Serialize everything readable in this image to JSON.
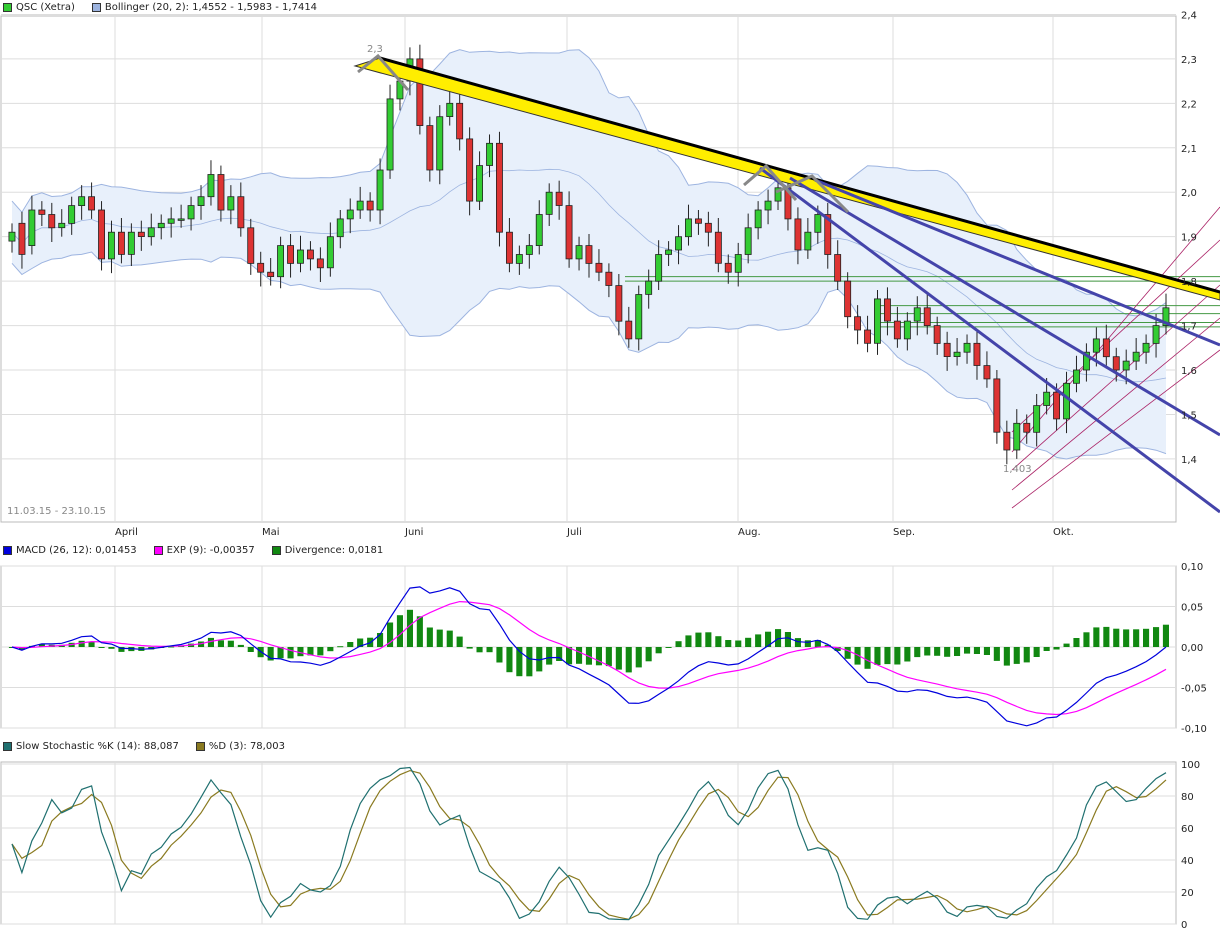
{
  "colors": {
    "up": "#33cc33",
    "down": "#dd3333",
    "band_fill": "#e8f0fb",
    "band_line": "#9db4e0",
    "macd": "#0000dd",
    "exp": "#ff00ff",
    "divergence": "#118811",
    "stoch_k": "#207070",
    "stoch_d": "#8a7a20",
    "trend_main": "#000000",
    "trend_yellow": "#ffee00",
    "trend_blue": "#4444aa",
    "channel": "#aa2266",
    "hline": "#449944",
    "grid": "#dddddd"
  },
  "legends": {
    "price": [
      {
        "label": "QSC (Xetra)",
        "color": "#33cc33"
      },
      {
        "label": "Bollinger (20, 2): 1,4552 - 1,5983 - 1,7414",
        "color": "#9db4e0"
      }
    ],
    "macd": [
      {
        "label": "MACD (26, 12): 0,01453",
        "color": "#0000dd"
      },
      {
        "label": "EXP (9): -0,00357",
        "color": "#ff00ff"
      },
      {
        "label": "Divergence: 0,0181",
        "color": "#118811"
      }
    ],
    "stoch": [
      {
        "label": "Slow Stochastic %K (14): 88,087",
        "color": "#207070"
      },
      {
        "label": "%D (3): 78,003",
        "color": "#8a7a20"
      }
    ]
  },
  "date_range": "11.03.15 - 23.10.15",
  "months": [
    "April",
    "Mai",
    "Juni",
    "Juli",
    "Aug.",
    "Sep.",
    "Okt."
  ],
  "price_ticks": [
    "2,4",
    "2,3",
    "2,2",
    "2,1",
    "2,0",
    "1,9",
    "1,8",
    "1,7",
    "1,6",
    "1,5",
    "1,4"
  ],
  "macd_ticks": [
    "0,10",
    "0,05",
    "0,00",
    "-0,05",
    "-0,10"
  ],
  "stoch_ticks": [
    "100",
    "80",
    "60",
    "40",
    "20",
    "0"
  ],
  "annotations": {
    "high": "2,3",
    "low": "1,403"
  },
  "chart_data": [
    {
      "type": "candlestick",
      "title": "QSC (Xetra)",
      "x_range": [
        "11.03.15",
        "23.10.15"
      ],
      "ylim": [
        1.3,
        2.4
      ],
      "closes": [
        1.91,
        1.86,
        1.96,
        1.95,
        1.92,
        1.93,
        1.97,
        1.99,
        1.96,
        1.85,
        1.91,
        1.86,
        1.91,
        1.9,
        1.92,
        1.93,
        1.94,
        1.94,
        1.97,
        1.99,
        2.04,
        1.96,
        1.99,
        1.92,
        1.84,
        1.82,
        1.81,
        1.88,
        1.84,
        1.87,
        1.85,
        1.83,
        1.9,
        1.94,
        1.96,
        1.98,
        1.96,
        2.05,
        2.21,
        2.25,
        2.3,
        2.15,
        2.05,
        2.17,
        2.2,
        2.12,
        1.98,
        2.06,
        2.11,
        1.91,
        1.84,
        1.86,
        1.88,
        1.95,
        2.0,
        1.97,
        1.85,
        1.88,
        1.84,
        1.82,
        1.79,
        1.71,
        1.67,
        1.77,
        1.8,
        1.86,
        1.87,
        1.9,
        1.94,
        1.93,
        1.91,
        1.84,
        1.82,
        1.86,
        1.92,
        1.96,
        1.98,
        2.01,
        1.94,
        1.87,
        1.91,
        1.95,
        1.86,
        1.8,
        1.72,
        1.69,
        1.66,
        1.76,
        1.71,
        1.67,
        1.71,
        1.74,
        1.7,
        1.66,
        1.63,
        1.64,
        1.66,
        1.61,
        1.58,
        1.46,
        1.42,
        1.48,
        1.46,
        1.52,
        1.55,
        1.49,
        1.57,
        1.6,
        1.64,
        1.67,
        1.63,
        1.6,
        1.62,
        1.64,
        1.66,
        1.7,
        1.74
      ],
      "opens": [
        1.89,
        1.93,
        1.88,
        1.96,
        1.95,
        1.92,
        1.93,
        1.97,
        1.99,
        1.96,
        1.85,
        1.91,
        1.86,
        1.91,
        1.9,
        1.92,
        1.93,
        1.94,
        1.94,
        1.97,
        1.99,
        2.04,
        1.96,
        1.99,
        1.92,
        1.84,
        1.82,
        1.81,
        1.88,
        1.84,
        1.87,
        1.85,
        1.83,
        1.9,
        1.94,
        1.96,
        1.98,
        1.96,
        2.05,
        2.21,
        2.25,
        2.3,
        2.15,
        2.05,
        2.17,
        2.2,
        2.12,
        1.98,
        2.06,
        2.11,
        1.91,
        1.84,
        1.86,
        1.88,
        1.95,
        2.0,
        1.97,
        1.85,
        1.88,
        1.84,
        1.82,
        1.79,
        1.71,
        1.67,
        1.77,
        1.8,
        1.86,
        1.87,
        1.9,
        1.94,
        1.93,
        1.91,
        1.84,
        1.82,
        1.86,
        1.92,
        1.96,
        1.98,
        2.01,
        1.94,
        1.87,
        1.91,
        1.95,
        1.86,
        1.8,
        1.72,
        1.69,
        1.66,
        1.76,
        1.71,
        1.67,
        1.71,
        1.74,
        1.7,
        1.66,
        1.63,
        1.64,
        1.66,
        1.61,
        1.58,
        1.46,
        1.42,
        1.48,
        1.46,
        1.52,
        1.55,
        1.49,
        1.57,
        1.6,
        1.64,
        1.67,
        1.63,
        1.6,
        1.62,
        1.64,
        1.66,
        1.7
      ],
      "bollinger": {
        "upper": 1.7414,
        "middle": 1.5983,
        "lower": 1.4552
      }
    },
    {
      "type": "bar",
      "title": "MACD (26, 12)",
      "ylim": [
        -0.1,
        0.1
      ],
      "macd_last": 0.01453,
      "exp_last": -0.00357,
      "divergence_last": 0.0181
    },
    {
      "type": "line",
      "title": "Slow Stochastic %K (14)",
      "ylim": [
        0,
        100
      ],
      "k_last": 88.087,
      "d_last": 78.003
    }
  ]
}
